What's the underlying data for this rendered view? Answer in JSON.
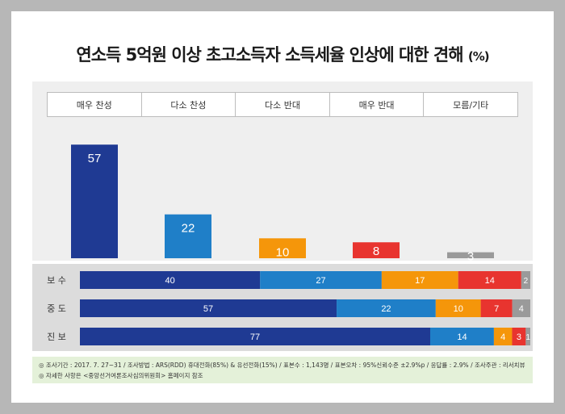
{
  "chart_data": {
    "type": "bar",
    "title": "연소득 5억원 이상 초고소득자 소득세율 인상에 대한 견해",
    "unit": "(%)",
    "categories": [
      "매우 찬성",
      "다소 찬성",
      "다소 반대",
      "매우 반대",
      "모름/기타"
    ],
    "colors": [
      "#1f3a93",
      "#1f7fc8",
      "#f5960a",
      "#e8342f",
      "#9a9a9a"
    ],
    "values": [
      57,
      22,
      10,
      8,
      3
    ],
    "stacked": {
      "groups": [
        "보 수",
        "중 도",
        "진 보"
      ],
      "series": [
        {
          "name": "매우 찬성",
          "values": [
            40,
            57,
            77
          ]
        },
        {
          "name": "다소 찬성",
          "values": [
            27,
            22,
            14
          ]
        },
        {
          "name": "다소 반대",
          "values": [
            17,
            10,
            4
          ]
        },
        {
          "name": "매우 반대",
          "values": [
            14,
            7,
            3
          ]
        },
        {
          "name": "모름/기타",
          "values": [
            2,
            4,
            1
          ]
        }
      ]
    }
  },
  "footnote": {
    "line1": "◎ 조사기간 : 2017. 7. 27~31 / 조사방법 : ARS(RDD) 휴대전화(85%) & 유선전화(15%) / 표본수 : 1,143명 / 표본오차 : 95%신뢰수준 ±2.9%p / 응답률 : 2.9% / 조사주관 : 리서치뷰",
    "line2": "◎ 자세한 사항은 <중앙선거여론조사심의위원회> 홈페이지 참조"
  }
}
